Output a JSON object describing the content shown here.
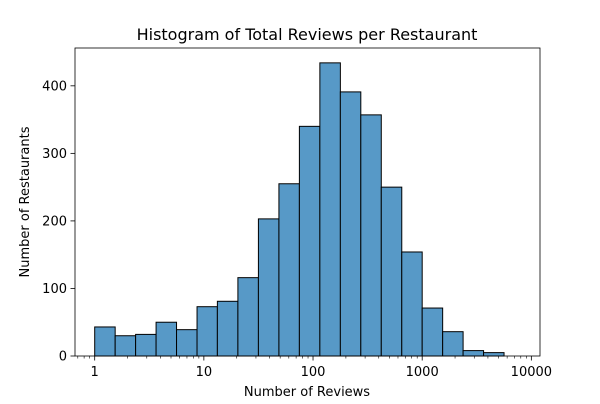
{
  "chart_data": {
    "type": "bar",
    "title": "Histogram of Total Reviews per Restaurant",
    "xlabel": "Number of Reviews",
    "ylabel": "Number of Restaurants",
    "x_scale": "log",
    "xlim": [
      0.66,
      12000
    ],
    "ylim": [
      0,
      456
    ],
    "grid": false,
    "legend": "none",
    "bar_color": "#5799c7",
    "edge_color": "#000000",
    "x_ticks": [
      {
        "value": 1,
        "label": "1"
      },
      {
        "value": 10,
        "label": "10"
      },
      {
        "value": 100,
        "label": "100"
      },
      {
        "value": 1000,
        "label": "1000"
      },
      {
        "value": 10000,
        "label": "10000"
      }
    ],
    "y_ticks": [
      {
        "value": 0,
        "label": "0"
      },
      {
        "value": 100,
        "label": "100"
      },
      {
        "value": 200,
        "label": "200"
      },
      {
        "value": 300,
        "label": "300"
      },
      {
        "value": 400,
        "label": "400"
      }
    ],
    "bins": [
      {
        "x0": 1.0,
        "x1": 1.54,
        "count": 43
      },
      {
        "x0": 1.54,
        "x1": 2.37,
        "count": 30
      },
      {
        "x0": 2.37,
        "x1": 3.65,
        "count": 32
      },
      {
        "x0": 3.65,
        "x1": 5.62,
        "count": 50
      },
      {
        "x0": 5.62,
        "x1": 8.66,
        "count": 39
      },
      {
        "x0": 8.66,
        "x1": 13.3,
        "count": 73
      },
      {
        "x0": 13.3,
        "x1": 20.5,
        "count": 81
      },
      {
        "x0": 20.5,
        "x1": 31.6,
        "count": 116
      },
      {
        "x0": 31.6,
        "x1": 48.7,
        "count": 203
      },
      {
        "x0": 48.7,
        "x1": 75.0,
        "count": 255
      },
      {
        "x0": 75.0,
        "x1": 115.5,
        "count": 340
      },
      {
        "x0": 115.5,
        "x1": 178,
        "count": 434
      },
      {
        "x0": 178,
        "x1": 274,
        "count": 391
      },
      {
        "x0": 274,
        "x1": 422,
        "count": 357
      },
      {
        "x0": 422,
        "x1": 650,
        "count": 250
      },
      {
        "x0": 650,
        "x1": 1000,
        "count": 154
      },
      {
        "x0": 1000,
        "x1": 1540,
        "count": 71
      },
      {
        "x0": 1540,
        "x1": 2370,
        "count": 36
      },
      {
        "x0": 2370,
        "x1": 3650,
        "count": 8
      },
      {
        "x0": 3650,
        "x1": 5620,
        "count": 5
      }
    ]
  }
}
